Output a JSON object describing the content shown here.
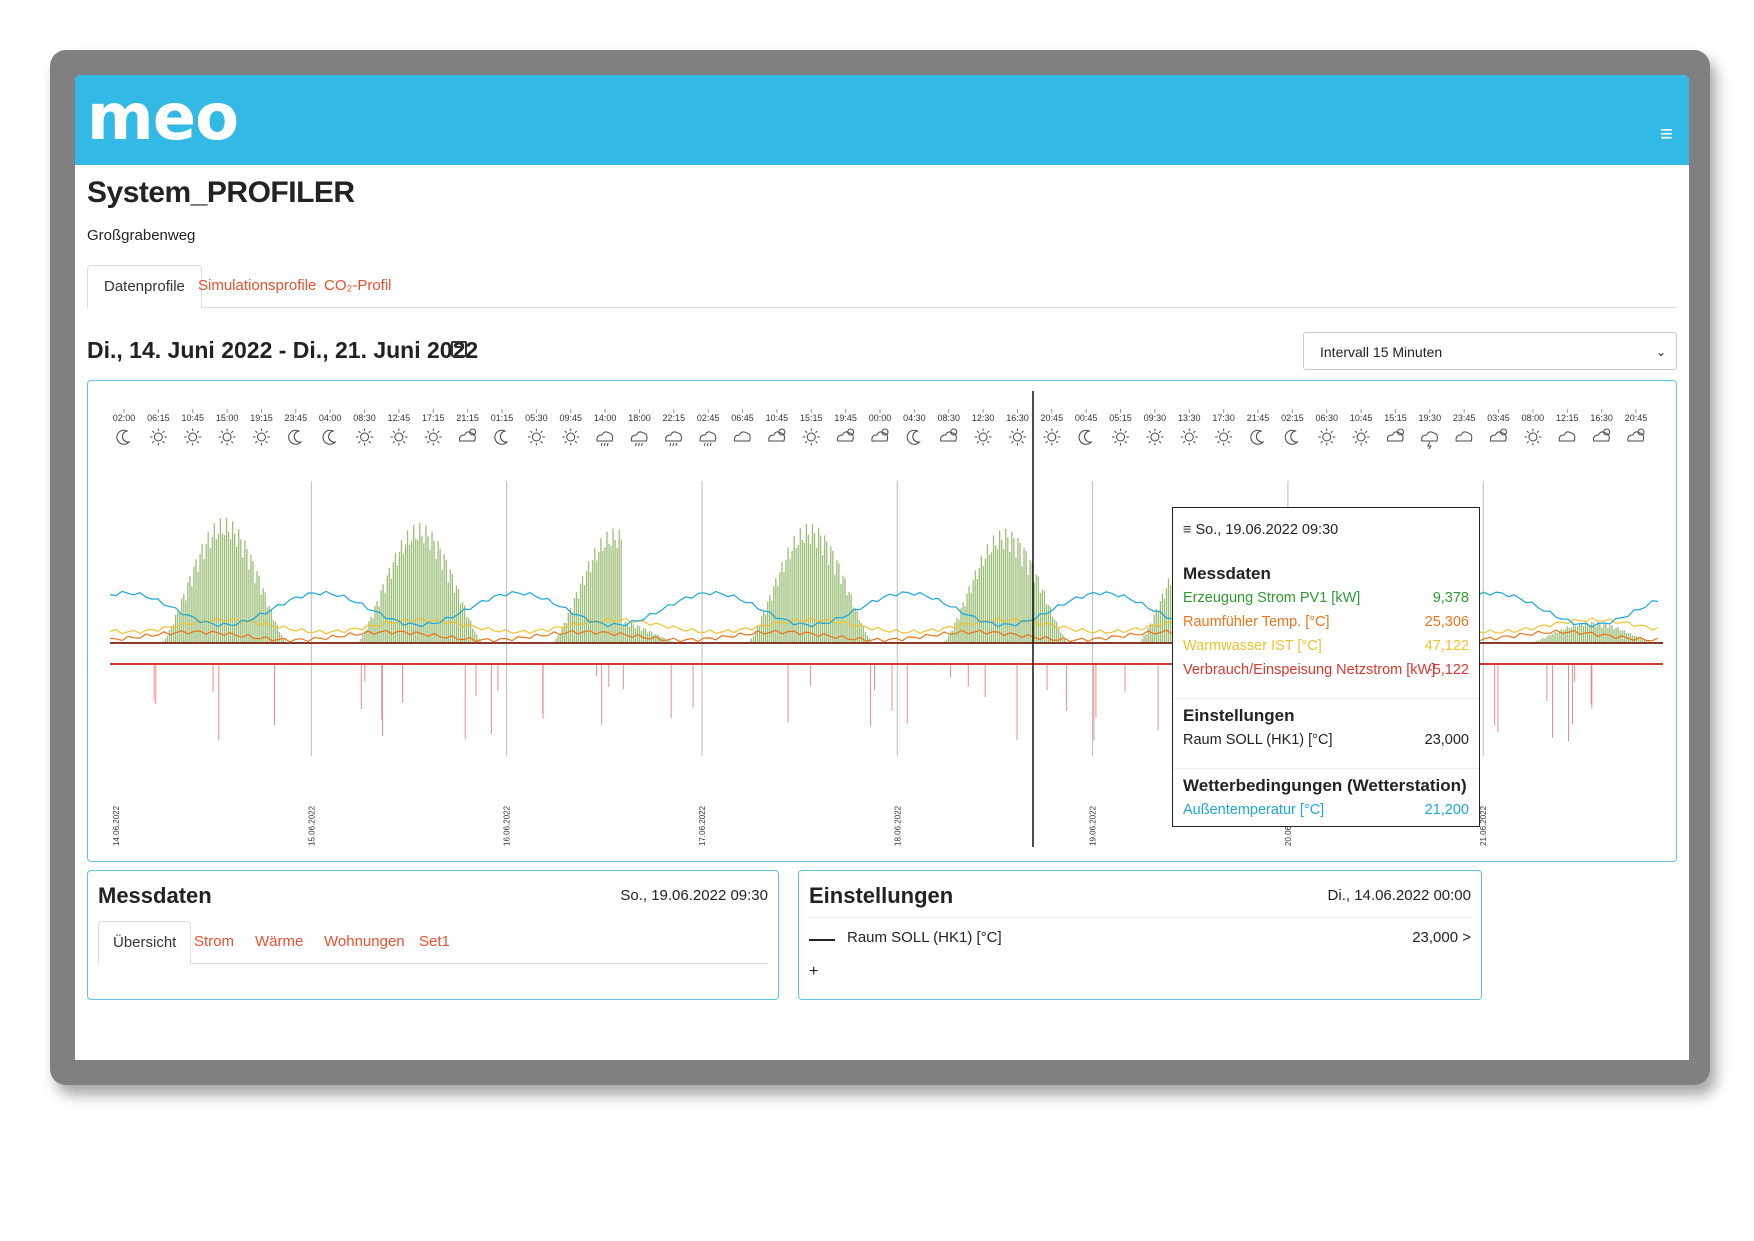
{
  "app": {
    "logo": "meo",
    "menu_icon": "≡",
    "title": "System_PROFILER",
    "subtitle": "Großgrabenweg"
  },
  "tabs": [
    {
      "label": "Datenprofile",
      "active": true
    },
    {
      "label": "Simulationsprofile",
      "active": false
    },
    {
      "label": "CO₂-Profil",
      "active": false
    }
  ],
  "date_range": "Di., 14. Juni 2022 - Di., 21. Juni 2022",
  "interval_select": {
    "value": "Intervall 15 Minuten"
  },
  "colors": {
    "accent": "#33b9e6",
    "tab_link": "#e8502e",
    "pv": "#7aa84a",
    "room_temp": "#e8751a",
    "hot_water": "#f2c12e",
    "grid": "#d63a2f",
    "outside_temp": "#1ba7d8"
  },
  "chart_data": {
    "type": "area",
    "time_labels": [
      "02:00",
      "06:15",
      "10:45",
      "15:00",
      "19:15",
      "23:45",
      "04:00",
      "08:30",
      "12:45",
      "17:15",
      "21:15",
      "01:15",
      "05:30",
      "09:45",
      "14:00",
      "18:00",
      "22:15",
      "02:45",
      "06:45",
      "10:45",
      "15:15",
      "19:45",
      "00:00",
      "04:30",
      "08:30",
      "12:30",
      "16:30",
      "20:45",
      "00:45",
      "05:15",
      "09:30",
      "13:30",
      "17:30",
      "21:45",
      "02:15",
      "06:30",
      "10:45",
      "15:15",
      "19:30",
      "23:45",
      "03:45",
      "08:00",
      "12:15",
      "16:30",
      "20:45"
    ],
    "weather_icons": [
      "moon-icon",
      "sun-icon",
      "sun-icon",
      "sun-icon",
      "sun-icon",
      "moon-icon",
      "moon-icon",
      "sun-icon",
      "sun-icon",
      "sun-icon",
      "partly-cloudy-icon",
      "moon-icon",
      "sun-icon",
      "sun-icon",
      "rain-icon",
      "rain-icon",
      "rain-icon",
      "rain-icon",
      "cloud-icon",
      "partly-cloudy-icon",
      "sun-icon",
      "partly-cloudy-icon",
      "partly-cloudy-icon",
      "moon-icon",
      "partly-cloudy-icon",
      "sun-icon",
      "sun-icon",
      "sun-icon",
      "moon-icon",
      "sun-icon",
      "sun-icon",
      "sun-icon",
      "sun-icon",
      "moon-icon",
      "moon-icon",
      "sun-icon",
      "sun-icon",
      "partly-cloudy-icon",
      "thunder-icon",
      "cloud-icon",
      "partly-cloudy-icon",
      "sun-icon",
      "cloud-icon",
      "partly-cloudy-icon",
      "partly-cloudy-icon"
    ],
    "day_labels": [
      "14.06.2022",
      "15.06.2022",
      "16.06.2022",
      "17.06.2022",
      "18.06.2022",
      "19.06.2022",
      "20.06.2022",
      "21.06.2022"
    ],
    "series": [
      {
        "name": "Erzeugung Strom PV1 [kW]",
        "unit": "kW",
        "daily_peak": [
          11.5,
          11.0,
          10.5,
          11.0,
          10.5,
          10.0,
          9.5,
          2.0
        ]
      },
      {
        "name": "Verbrauch/Einspeisung Netzstrom [kW]",
        "unit": "kW"
      },
      {
        "name": "Raumfühler Temp. [°C]",
        "unit": "°C"
      },
      {
        "name": "Warmwasser IST [°C]",
        "unit": "°C"
      },
      {
        "name": "Außentemperatur [°C]",
        "unit": "°C"
      }
    ],
    "cursor_time": "19.06.2022 09:30"
  },
  "tooltip": {
    "header": "So., 19.06.2022 09:30",
    "sections": [
      {
        "title": "Messdaten",
        "rows": [
          {
            "label": "Erzeugung Strom PV1 [kW]",
            "value": "9,378",
            "color": "#2e9a2e"
          },
          {
            "label": "Raumfühler Temp. [°C]",
            "value": "25,306",
            "color": "#e8751a"
          },
          {
            "label": "Warmwasser IST [°C]",
            "value": "47,122",
            "color": "#f2c12e"
          },
          {
            "label": "Verbrauch/Einspeisung Netzstrom [kW]",
            "value": "-5,122",
            "color": "#d63a2f"
          }
        ]
      },
      {
        "title": "Einstellungen",
        "rows": [
          {
            "label": "Raum SOLL (HK1) [°C]",
            "value": "23,000",
            "color": "#222222"
          }
        ]
      },
      {
        "title": "Wetterbedingungen (Wetterstation)",
        "rows": [
          {
            "label": "Außentemperatur [°C]",
            "value": "21,200",
            "color": "#1ba7d8"
          }
        ]
      }
    ]
  },
  "messdaten_panel": {
    "title": "Messdaten",
    "date": "So., 19.06.2022 09:30",
    "tabs": [
      {
        "label": "Übersicht",
        "active": true
      },
      {
        "label": "Strom",
        "active": false
      },
      {
        "label": "Wärme",
        "active": false
      },
      {
        "label": "Wohnungen",
        "active": false
      },
      {
        "label": "Set1",
        "active": false
      }
    ]
  },
  "einstellungen_panel": {
    "title": "Einstellungen",
    "date": "Di., 14.06.2022 00:00",
    "row_label": "Raum SOLL (HK1) [°C]",
    "row_value": "23,000 >",
    "add_label": "+"
  }
}
